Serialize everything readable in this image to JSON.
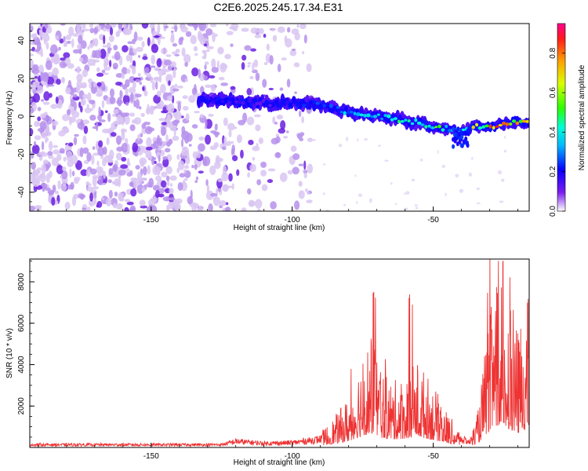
{
  "title": "C2E6.2025.245.17.34.E31",
  "colors": {
    "snr_line": "#ee3333",
    "axis": "#000000",
    "noise_light": "#d9c6f2",
    "noise_mid": "#b690ec",
    "noise_dark": "#6a1ee0"
  },
  "chart_data": [
    {
      "type": "heatmap",
      "title": "C2E6.2025.245.17.34.E31",
      "xlabel": "Height of straight line (km)",
      "ylabel": "Frequency (Hz)",
      "xlim": [
        -193,
        -16
      ],
      "ylim": [
        -50,
        49
      ],
      "xticks": [
        "-150",
        "-100",
        "-50"
      ],
      "yticks": [
        "40",
        "20",
        "0",
        "-20",
        "-40"
      ],
      "colorbar": {
        "label": "Normalized spectral amplitude",
        "range": [
          0.0,
          0.95
        ],
        "ticks": [
          "0.0",
          "0.2",
          "0.4",
          "0.6",
          "0.8"
        ]
      },
      "ridge": {
        "description": "Meteor head echo frequency track",
        "points": [
          {
            "x": -133,
            "freq": 9,
            "amp": 0.2
          },
          {
            "x": -120,
            "freq": 8,
            "amp": 0.22
          },
          {
            "x": -110,
            "freq": 7,
            "amp": 0.2
          },
          {
            "x": -100,
            "freq": 7,
            "amp": 0.25
          },
          {
            "x": -90,
            "freq": 6,
            "amp": 0.3
          },
          {
            "x": -80,
            "freq": 2,
            "amp": 0.38
          },
          {
            "x": -70,
            "freq": 0,
            "amp": 0.42
          },
          {
            "x": -60,
            "freq": -2,
            "amp": 0.5
          },
          {
            "x": -50,
            "freq": -5,
            "amp": 0.55
          },
          {
            "x": -40,
            "freq": -8,
            "amp": 0.45
          },
          {
            "x": -35,
            "freq": -5,
            "amp": 0.75
          },
          {
            "x": -28,
            "freq": -5,
            "amp": 0.85
          },
          {
            "x": -22,
            "freq": -3,
            "amp": 0.8
          },
          {
            "x": -16,
            "freq": -3,
            "amp": 0.7
          }
        ]
      }
    },
    {
      "type": "line",
      "xlabel": "Height of straight line (km)",
      "ylabel": "SNR (10 * v/v)",
      "xlim": [
        -193,
        -16
      ],
      "ylim": [
        0,
        9100
      ],
      "xticks": [
        "-150",
        "-100",
        "-50"
      ],
      "yticks": [
        "8000",
        "6000",
        "4000",
        "2000"
      ],
      "series": [
        {
          "name": "SNR",
          "envelope": [
            {
              "x": -193,
              "y": 200
            },
            {
              "x": -125,
              "y": 200
            },
            {
              "x": -120,
              "y": 450
            },
            {
              "x": -110,
              "y": 300
            },
            {
              "x": -100,
              "y": 350
            },
            {
              "x": -90,
              "y": 600
            },
            {
              "x": -85,
              "y": 1200
            },
            {
              "x": -80,
              "y": 2000
            },
            {
              "x": -76,
              "y": 3500
            },
            {
              "x": -72,
              "y": 4500
            },
            {
              "x": -68,
              "y": 3000
            },
            {
              "x": -64,
              "y": 2600
            },
            {
              "x": -60,
              "y": 2800
            },
            {
              "x": -56,
              "y": 3500
            },
            {
              "x": -52,
              "y": 2800
            },
            {
              "x": -48,
              "y": 2000
            },
            {
              "x": -44,
              "y": 1200
            },
            {
              "x": -40,
              "y": 600
            },
            {
              "x": -37,
              "y": 400
            },
            {
              "x": -34,
              "y": 1500
            },
            {
              "x": -31,
              "y": 4500
            },
            {
              "x": -28,
              "y": 6500
            },
            {
              "x": -26,
              "y": 6200
            },
            {
              "x": -23,
              "y": 6000
            },
            {
              "x": -20,
              "y": 4500
            },
            {
              "x": -18,
              "y": 5500
            },
            {
              "x": -16,
              "y": 6000
            }
          ]
        }
      ]
    }
  ]
}
